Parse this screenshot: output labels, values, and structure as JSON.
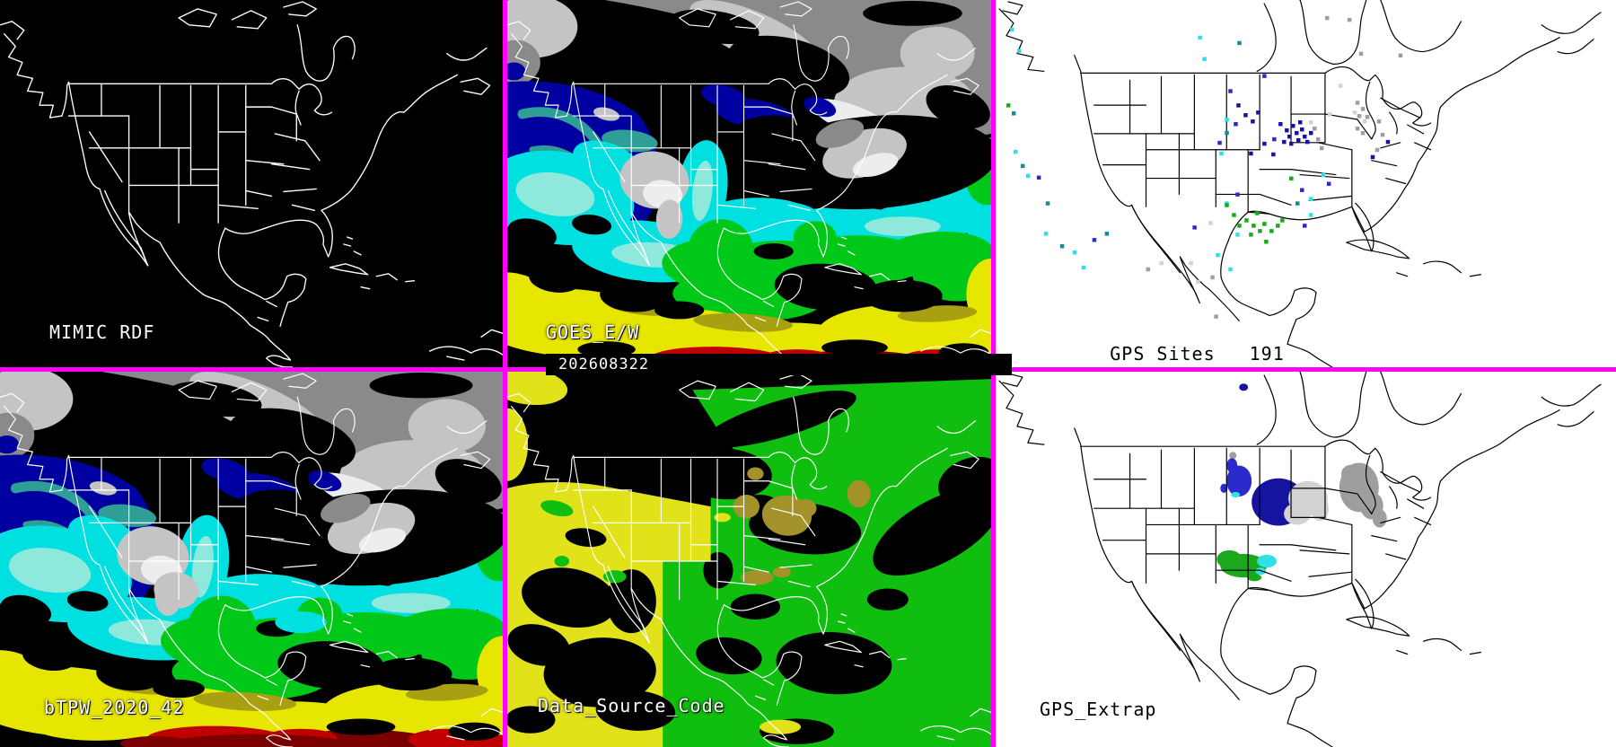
{
  "panels": {
    "mimic_rdf": {
      "label": "MIMIC RDF"
    },
    "goes_ew": {
      "label": "GOES_E/W",
      "timestamp": "202608322"
    },
    "gps_sites": {
      "label": "GPS Sites",
      "count": "191"
    },
    "btpw": {
      "label": "bTPW_2020_42"
    },
    "data_source_code": {
      "label": "Data_Source_Code"
    },
    "gps_extrap": {
      "label": "GPS_Extrap"
    }
  },
  "colors": {
    "border_magenta": "#FF00FF",
    "panel_dark_bg": "#000000",
    "panel_light_bg": "#FFFFFF",
    "outline_on_dark": "#FFFFFF",
    "outline_on_light": "#000000",
    "tpw": {
      "bg": "#000000",
      "navy": "#0000A0",
      "blue": "#1038D8",
      "teal": "#2F9E96",
      "cyan": "#00E0E0",
      "pale_cyan": "#8FE8DC",
      "green": "#00C818",
      "yellow": "#E6E600",
      "olive": "#A8A010",
      "red": "#C00000",
      "dark_red": "#7A0000",
      "grey": "#8A8A8A",
      "grey_light": "#C4C4C4",
      "grey_bright": "#EDEDED"
    },
    "source": {
      "bg": "#000000",
      "dsyellow": "#E2E21A",
      "dsgreen": "#0FBE0F",
      "dstan": "#A3922A"
    },
    "sites": {
      "n": "#1414A0",
      "b": "#2A2ACD",
      "t": "#148C96",
      "c": "#30E0E6",
      "g": "#1CA81C",
      "e": "#9E9E9E",
      "l": "#D2D2D2"
    }
  },
  "gps_site_points": [
    [
      18,
      33,
      "c"
    ],
    [
      26,
      57,
      "c"
    ],
    [
      14,
      118,
      "g"
    ],
    [
      20,
      127,
      "t"
    ],
    [
      22,
      170,
      "c"
    ],
    [
      30,
      186,
      "t"
    ],
    [
      36,
      197,
      "c"
    ],
    [
      48,
      199,
      "b"
    ],
    [
      56,
      262,
      "c"
    ],
    [
      74,
      276,
      "t"
    ],
    [
      88,
      283,
      "c"
    ],
    [
      110,
      269,
      "b"
    ],
    [
      124,
      262,
      "t"
    ],
    [
      98,
      300,
      "c"
    ],
    [
      58,
      228,
      "t"
    ],
    [
      228,
      42,
      "c"
    ],
    [
      233,
      66,
      "c"
    ],
    [
      272,
      48,
      "t"
    ],
    [
      300,
      85,
      "b"
    ],
    [
      258,
      134,
      "c"
    ],
    [
      218,
      295,
      "l"
    ],
    [
      226,
      316,
      "l"
    ],
    [
      242,
      311,
      "e"
    ],
    [
      170,
      302,
      "e"
    ],
    [
      185,
      295,
      "l"
    ],
    [
      246,
      355,
      "e"
    ],
    [
      222,
      255,
      "b"
    ],
    [
      250,
      160,
      "b"
    ],
    [
      258,
      228,
      "c"
    ],
    [
      270,
      218,
      "b"
    ],
    [
      248,
      286,
      "c"
    ],
    [
      262,
      302,
      "c"
    ],
    [
      240,
      250,
      "l"
    ],
    [
      262,
      102,
      "b"
    ],
    [
      271,
      118,
      "n"
    ],
    [
      279,
      129,
      "n"
    ],
    [
      268,
      139,
      "b"
    ],
    [
      287,
      136,
      "n"
    ],
    [
      293,
      126,
      "n"
    ],
    [
      258,
      149,
      "t"
    ],
    [
      300,
      161,
      "n"
    ],
    [
      311,
      156,
      "b"
    ],
    [
      252,
      172,
      "c"
    ],
    [
      285,
      172,
      "n"
    ],
    [
      318,
      139,
      "n"
    ],
    [
      325,
      146,
      "n"
    ],
    [
      332,
      141,
      "n"
    ],
    [
      328,
      153,
      "n"
    ],
    [
      336,
      149,
      "n"
    ],
    [
      342,
      145,
      "n"
    ],
    [
      338,
      157,
      "n"
    ],
    [
      330,
      161,
      "n"
    ],
    [
      345,
      153,
      "n"
    ],
    [
      322,
      159,
      "n"
    ],
    [
      340,
      137,
      "n"
    ],
    [
      348,
      159,
      "n"
    ],
    [
      352,
      149,
      "n"
    ],
    [
      310,
      173,
      "n"
    ],
    [
      356,
      144,
      "e"
    ],
    [
      360,
      156,
      "e"
    ],
    [
      352,
      137,
      "l"
    ],
    [
      364,
      166,
      "e"
    ],
    [
      395,
      22,
      "e"
    ],
    [
      370,
      20,
      "e"
    ],
    [
      408,
      60,
      "e"
    ],
    [
      452,
      62,
      "e"
    ],
    [
      385,
      96,
      "l"
    ],
    [
      404,
      115,
      "e"
    ],
    [
      410,
      122,
      "e"
    ],
    [
      406,
      130,
      "e"
    ],
    [
      412,
      136,
      "l"
    ],
    [
      401,
      126,
      "l"
    ],
    [
      404,
      144,
      "e"
    ],
    [
      410,
      149,
      "e"
    ],
    [
      415,
      131,
      "e"
    ],
    [
      428,
      136,
      "e"
    ],
    [
      432,
      151,
      "e"
    ],
    [
      438,
      159,
      "n"
    ],
    [
      426,
      168,
      "e"
    ],
    [
      421,
      176,
      "n"
    ],
    [
      373,
      128,
      "l"
    ],
    [
      366,
      196,
      "c"
    ],
    [
      372,
      206,
      "b"
    ],
    [
      342,
      213,
      "b"
    ],
    [
      352,
      223,
      "c"
    ],
    [
      330,
      200,
      "g"
    ],
    [
      258,
      230,
      "g"
    ],
    [
      266,
      241,
      "g"
    ],
    [
      272,
      253,
      "g"
    ],
    [
      280,
      247,
      "g"
    ],
    [
      288,
      253,
      "g"
    ],
    [
      295,
      259,
      "g"
    ],
    [
      285,
      263,
      "g"
    ],
    [
      300,
      251,
      "g"
    ],
    [
      292,
      239,
      "g"
    ],
    [
      302,
      271,
      "g"
    ],
    [
      308,
      259,
      "g"
    ],
    [
      315,
      253,
      "g"
    ],
    [
      270,
      263,
      "c"
    ],
    [
      320,
      247,
      "g"
    ],
    [
      352,
      241,
      "c"
    ],
    [
      345,
      253,
      "b"
    ],
    [
      337,
      228,
      "t"
    ]
  ],
  "extrap_blobs": [
    [
      277,
      17,
      5,
      4,
      "n"
    ],
    [
      265,
      92,
      4,
      4,
      "e"
    ],
    [
      272,
      120,
      14,
      17,
      "b"
    ],
    [
      264,
      103,
      6,
      8,
      "b"
    ],
    [
      268,
      135,
      5,
      3,
      "c"
    ],
    [
      255,
      128,
      4,
      5,
      "b"
    ],
    [
      316,
      143,
      30,
      26,
      "n"
    ],
    [
      349,
      139,
      22,
      19,
      "l"
    ],
    [
      337,
      156,
      15,
      12,
      "l"
    ],
    [
      362,
      150,
      10,
      14,
      "l"
    ],
    [
      406,
      127,
      22,
      27,
      "e"
    ],
    [
      420,
      147,
      13,
      15,
      "e"
    ],
    [
      429,
      161,
      8,
      10,
      "e"
    ],
    [
      398,
      112,
      12,
      10,
      "e"
    ],
    [
      277,
      213,
      26,
      13,
      "g"
    ],
    [
      261,
      206,
      14,
      10,
      "g"
    ],
    [
      303,
      208,
      11,
      7,
      "c"
    ],
    [
      296,
      219,
      6,
      4,
      "c"
    ],
    [
      289,
      226,
      8,
      4,
      "g"
    ]
  ]
}
